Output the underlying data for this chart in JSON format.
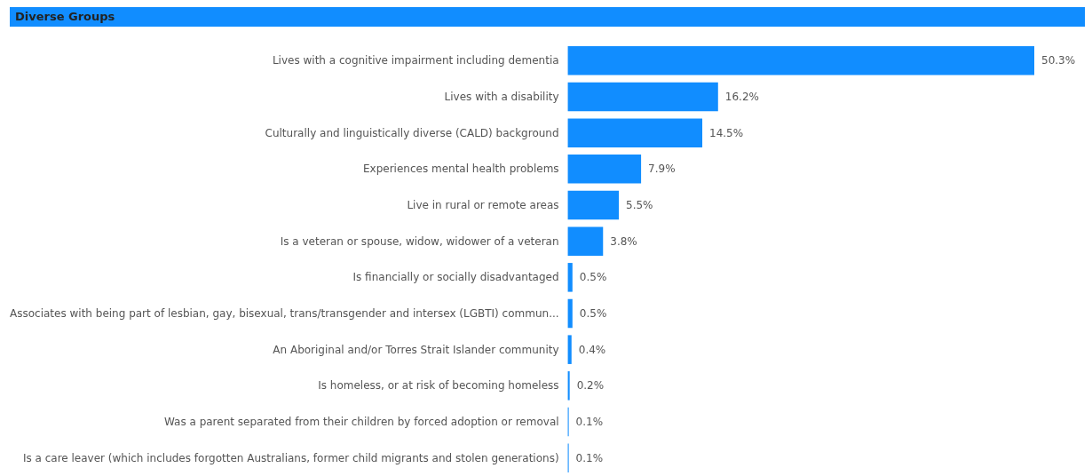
{
  "chart_data": {
    "type": "bar",
    "orientation": "horizontal",
    "title": "Diverse Groups",
    "categories": [
      "Lives with a cognitive impairment including dementia",
      "Lives with a disability",
      "Culturally and linguistically diverse (CALD) background",
      "Experiences mental health problems",
      "Live in rural or remote areas",
      "Is a veteran or spouse, widow, widower of a veteran",
      "Is financially or socially disadvantaged",
      "Associates with being part of lesbian, gay, bisexual, trans/transgender and intersex (LGBTI) commun...",
      "An Aboriginal and/or Torres Strait Islander community",
      "Is homeless, or at risk of becoming homeless",
      "Was a parent separated from their children by forced adoption or removal",
      "Is a care leaver (which includes forgotten Australians, former child migrants and stolen generations)"
    ],
    "values": [
      50.3,
      16.2,
      14.5,
      7.9,
      5.5,
      3.8,
      0.5,
      0.5,
      0.4,
      0.2,
      0.1,
      0.1
    ],
    "value_labels": [
      "50.3%",
      "16.2%",
      "14.5%",
      "7.9%",
      "5.5%",
      "3.8%",
      "0.5%",
      "0.5%",
      "0.4%",
      "0.2%",
      "0.1%",
      "0.1%"
    ],
    "color": "#118dff"
  }
}
